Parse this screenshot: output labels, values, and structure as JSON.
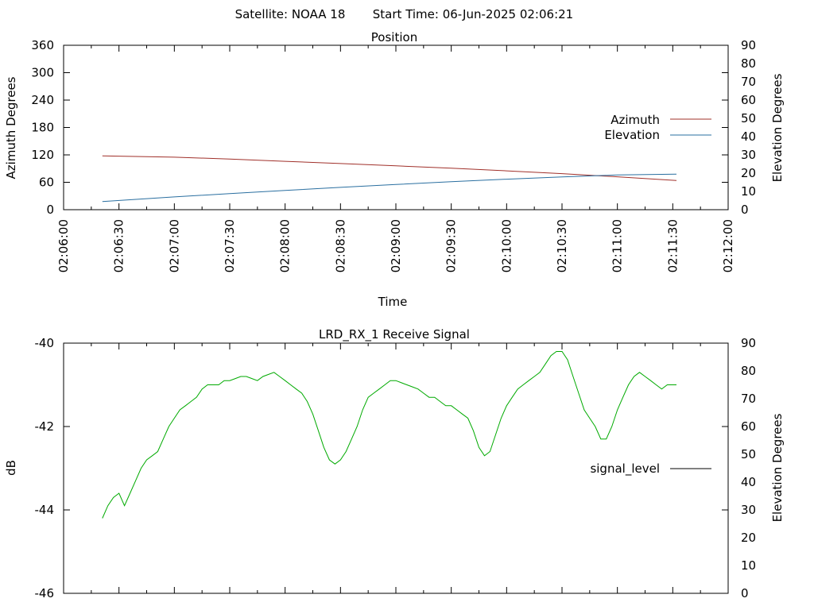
{
  "header": {
    "satellite": "Satellite: NOAA 18",
    "start_time": "Start Time: 06-Jun-2025 02:06:21"
  },
  "chart_data": [
    {
      "type": "line",
      "title": "Position",
      "xlabel": "Time",
      "ylabel": "Azimuth Degrees",
      "y2label": "Elevation Degrees",
      "xlim": [
        "02:06:00",
        "02:12:00"
      ],
      "ylim": [
        0,
        360
      ],
      "y2lim": [
        0,
        90
      ],
      "x_ticks": [
        "02:06:00",
        "02:06:30",
        "02:07:00",
        "02:07:30",
        "02:08:00",
        "02:08:30",
        "02:09:00",
        "02:09:30",
        "02:10:00",
        "02:10:30",
        "02:11:00",
        "02:11:30",
        "02:12:00"
      ],
      "y_ticks": [
        "0",
        "60",
        "120",
        "180",
        "240",
        "300",
        "360"
      ],
      "y2_ticks": [
        "0",
        "10",
        "20",
        "30",
        "40",
        "50",
        "60",
        "70",
        "80",
        "90"
      ],
      "legend_position": "right",
      "series": [
        {
          "name": "Azimuth",
          "axis": "y",
          "color": "#a0302a",
          "x": [
            "02:06:21",
            "02:07:00",
            "02:07:30",
            "02:08:00",
            "02:08:30",
            "02:09:00",
            "02:09:30",
            "02:10:00",
            "02:10:30",
            "02:11:00",
            "02:11:32"
          ],
          "values": [
            118,
            115,
            111,
            106,
            101,
            96,
            91,
            85,
            79,
            72,
            64
          ]
        },
        {
          "name": "Elevation",
          "axis": "y2",
          "color": "#2a6fa0",
          "x": [
            "02:06:21",
            "02:07:00",
            "02:07:30",
            "02:08:00",
            "02:08:30",
            "02:09:00",
            "02:09:30",
            "02:10:00",
            "02:10:30",
            "02:11:00",
            "02:11:32"
          ],
          "values": [
            4.5,
            7,
            8.8,
            10.5,
            12.2,
            13.8,
            15.3,
            16.7,
            17.9,
            19,
            19.5
          ]
        }
      ]
    },
    {
      "type": "line",
      "title": "LRD_RX_1 Receive Signal",
      "ylabel": "dB",
      "y2label": "Elevation Degrees",
      "xlim": [
        "02:06:00",
        "02:12:00"
      ],
      "ylim": [
        -46,
        -40
      ],
      "y2lim": [
        0,
        90
      ],
      "y_ticks": [
        "-40",
        "-42",
        "-44",
        "-46"
      ],
      "y2_ticks": [
        "0",
        "10",
        "20",
        "30",
        "40",
        "50",
        "60",
        "70",
        "80",
        "90"
      ],
      "legend_position": "right",
      "series": [
        {
          "name": "signal_level",
          "axis": "y",
          "color": "#00aa00",
          "x": [
            "02:06:21",
            "02:06:24",
            "02:06:27",
            "02:06:30",
            "02:06:33",
            "02:06:36",
            "02:06:39",
            "02:06:42",
            "02:06:45",
            "02:06:48",
            "02:06:51",
            "02:06:54",
            "02:06:57",
            "02:07:00",
            "02:07:03",
            "02:07:06",
            "02:07:09",
            "02:07:12",
            "02:07:15",
            "02:07:18",
            "02:07:21",
            "02:07:24",
            "02:07:27",
            "02:07:30",
            "02:07:33",
            "02:07:36",
            "02:07:39",
            "02:07:42",
            "02:07:45",
            "02:07:48",
            "02:07:51",
            "02:07:54",
            "02:07:57",
            "02:08:00",
            "02:08:03",
            "02:08:06",
            "02:08:09",
            "02:08:12",
            "02:08:15",
            "02:08:18",
            "02:08:21",
            "02:08:24",
            "02:08:27",
            "02:08:30",
            "02:08:33",
            "02:08:36",
            "02:08:39",
            "02:08:42",
            "02:08:45",
            "02:08:48",
            "02:08:51",
            "02:08:54",
            "02:08:57",
            "02:09:00",
            "02:09:03",
            "02:09:06",
            "02:09:09",
            "02:09:12",
            "02:09:15",
            "02:09:18",
            "02:09:21",
            "02:09:24",
            "02:09:27",
            "02:09:30",
            "02:09:33",
            "02:09:36",
            "02:09:39",
            "02:09:42",
            "02:09:45",
            "02:09:48",
            "02:09:51",
            "02:09:54",
            "02:09:57",
            "02:10:00",
            "02:10:03",
            "02:10:06",
            "02:10:09",
            "02:10:12",
            "02:10:15",
            "02:10:18",
            "02:10:21",
            "02:10:24",
            "02:10:27",
            "02:10:30",
            "02:10:33",
            "02:10:36",
            "02:10:39",
            "02:10:42",
            "02:10:45",
            "02:10:48",
            "02:10:51",
            "02:10:54",
            "02:10:57",
            "02:11:00",
            "02:11:03",
            "02:11:06",
            "02:11:09",
            "02:11:12",
            "02:11:15",
            "02:11:18",
            "02:11:21",
            "02:11:24",
            "02:11:27",
            "02:11:30",
            "02:11:32"
          ],
          "values": [
            -44.2,
            -43.9,
            -43.7,
            -43.6,
            -43.9,
            -43.6,
            -43.3,
            -43.0,
            -42.8,
            -42.7,
            -42.6,
            -42.3,
            -42.0,
            -41.8,
            -41.6,
            -41.5,
            -41.4,
            -41.3,
            -41.1,
            -41.0,
            -41.0,
            -41.0,
            -40.9,
            -40.9,
            -40.85,
            -40.8,
            -40.8,
            -40.85,
            -40.9,
            -40.8,
            -40.75,
            -40.7,
            -40.8,
            -40.9,
            -41.0,
            -41.1,
            -41.2,
            -41.4,
            -41.7,
            -42.1,
            -42.5,
            -42.8,
            -42.9,
            -42.8,
            -42.6,
            -42.3,
            -42.0,
            -41.6,
            -41.3,
            -41.2,
            -41.1,
            -41.0,
            -40.9,
            -40.9,
            -40.95,
            -41.0,
            -41.05,
            -41.1,
            -41.2,
            -41.3,
            -41.3,
            -41.4,
            -41.5,
            -41.5,
            -41.6,
            -41.7,
            -41.8,
            -42.1,
            -42.5,
            -42.7,
            -42.6,
            -42.2,
            -41.8,
            -41.5,
            -41.3,
            -41.1,
            -41.0,
            -40.9,
            -40.8,
            -40.7,
            -40.5,
            -40.3,
            -40.2,
            -40.2,
            -40.4,
            -40.8,
            -41.2,
            -41.6,
            -41.8,
            -42.0,
            -42.3,
            -42.3,
            -42.0,
            -41.6,
            -41.3,
            -41.0,
            -40.8,
            -40.7,
            -40.8,
            -40.9,
            -41.0,
            -41.1,
            -41.0,
            -41.0,
            -41.0
          ]
        }
      ]
    }
  ]
}
